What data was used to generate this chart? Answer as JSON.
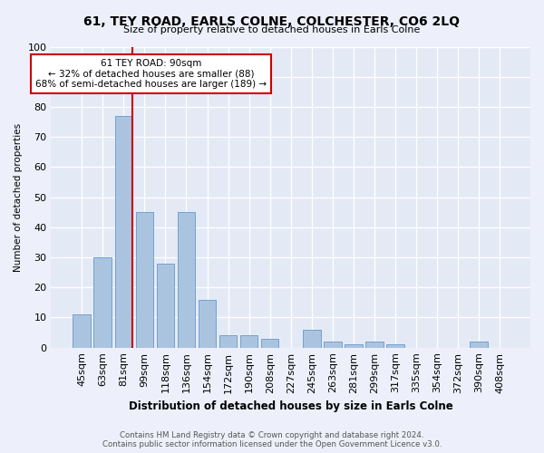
{
  "title": "61, TEY ROAD, EARLS COLNE, COLCHESTER, CO6 2LQ",
  "subtitle": "Size of property relative to detached houses in Earls Colne",
  "xlabel": "Distribution of detached houses by size in Earls Colne",
  "ylabel": "Number of detached properties",
  "categories": [
    "45sqm",
    "63sqm",
    "81sqm",
    "99sqm",
    "118sqm",
    "136sqm",
    "154sqm",
    "172sqm",
    "190sqm",
    "208sqm",
    "227sqm",
    "245sqm",
    "263sqm",
    "281sqm",
    "299sqm",
    "317sqm",
    "335sqm",
    "354sqm",
    "372sqm",
    "390sqm",
    "408sqm"
  ],
  "values": [
    11,
    30,
    77,
    45,
    28,
    45,
    16,
    4,
    4,
    3,
    0,
    6,
    2,
    1,
    2,
    1,
    0,
    0,
    0,
    2,
    0
  ],
  "bar_color": "#aac4e0",
  "bar_edge_color": "#6699cc",
  "vline_color": "#cc0000",
  "annotation_text": "61 TEY ROAD: 90sqm\n← 32% of detached houses are smaller (88)\n68% of semi-detached houses are larger (189) →",
  "annotation_box_color": "#ffffff",
  "annotation_box_edge": "#cc0000",
  "ylim": [
    0,
    100
  ],
  "footer": "Contains HM Land Registry data © Crown copyright and database right 2024.\nContains public sector information licensed under the Open Government Licence v3.0.",
  "bg_color": "#edf0fa",
  "plot_bg_color": "#e4eaf5"
}
